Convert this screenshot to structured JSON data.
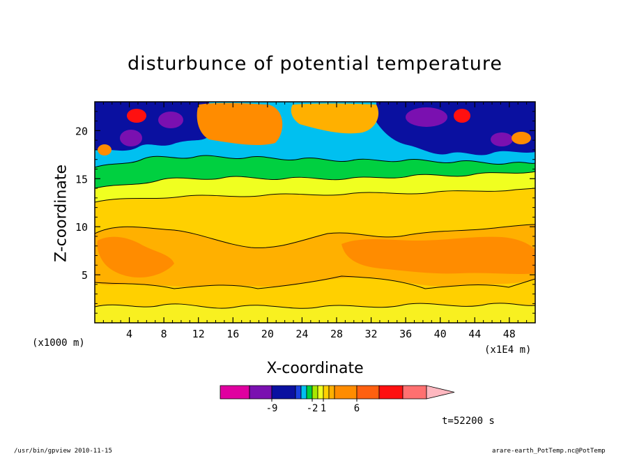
{
  "chart_data": {
    "type": "heatmap",
    "title": "disturbunce of potential temperature",
    "xlabel": "X-coordinate",
    "ylabel": "Z-coordinate",
    "x_unit_left": "(x1000 m)",
    "x_unit_right": "(x1E4 m)",
    "x_ticks": [
      "4",
      "8",
      "12",
      "16",
      "20",
      "24",
      "28",
      "32",
      "36",
      "40",
      "44",
      "48"
    ],
    "y_ticks": [
      "5",
      "10",
      "15",
      "20"
    ],
    "xlim": [
      0,
      51
    ],
    "ylim": [
      0,
      23
    ],
    "colorbar": {
      "labels": [
        "-9",
        "-2",
        "1",
        "6"
      ],
      "colors": [
        "#e000a0",
        "#7a10b0",
        "#0a10a0",
        "#1a40e0",
        "#00c0f0",
        "#00d040",
        "#a8e800",
        "#f0ff20",
        "#ffd000",
        "#ffb000",
        "#ff8c00",
        "#ff6010",
        "#ff1010",
        "#ff7070",
        "#ffb8c0"
      ]
    },
    "time_label": "t=52200 s",
    "footer_left": "/usr/bin/gpview  2010-11-15",
    "footer_right": "arare-earth_PotTemp.nc@PotTemp"
  }
}
